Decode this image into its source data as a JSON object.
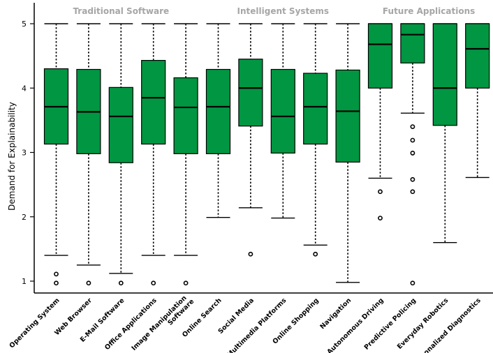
{
  "chart_data": {
    "type": "box",
    "ylabel": "Demand for Explainability",
    "ylim": [
      0.83,
      5.3
    ],
    "yticks": [
      1,
      2,
      3,
      4,
      5
    ],
    "box_color": "#009642",
    "groups": [
      {
        "label": "Traditional Software",
        "span": [
          0,
          4
        ]
      },
      {
        "label": "Intelligent Systems",
        "span": [
          5,
          9
        ]
      },
      {
        "label": "Future Applications",
        "span": [
          10,
          13
        ]
      }
    ],
    "categories": [
      {
        "label": "Operating System",
        "min": 1.4,
        "q1": 3.13,
        "median": 3.71,
        "q3": 4.3,
        "max": 5.0,
        "outliers": [
          1.11,
          0.97
        ]
      },
      {
        "label": "Web Browser",
        "min": 1.25,
        "q1": 2.98,
        "median": 3.63,
        "q3": 4.29,
        "max": 5.0,
        "outliers": [
          0.97
        ]
      },
      {
        "label": "E-Mail Software",
        "min": 1.12,
        "q1": 2.84,
        "median": 3.56,
        "q3": 4.01,
        "max": 5.0,
        "outliers": [
          0.97
        ]
      },
      {
        "label": "Office Applications",
        "min": 1.4,
        "q1": 3.13,
        "median": 3.85,
        "q3": 4.43,
        "max": 5.0,
        "outliers": [
          0.97
        ]
      },
      {
        "label": "Image Manipulation Software",
        "min": 1.4,
        "q1": 2.98,
        "median": 3.7,
        "q3": 4.16,
        "max": 5.0,
        "outliers": [
          0.97
        ]
      },
      {
        "label": "Online Search",
        "min": 1.99,
        "q1": 2.98,
        "median": 3.71,
        "q3": 4.29,
        "max": 5.0,
        "outliers": []
      },
      {
        "label": "Social  Media",
        "min": 2.14,
        "q1": 3.41,
        "median": 4.0,
        "q3": 4.45,
        "max": 5.0,
        "outliers": [
          1.42
        ]
      },
      {
        "label": "Multimedia Platforms",
        "min": 1.98,
        "q1": 2.99,
        "median": 3.56,
        "q3": 4.29,
        "max": 5.0,
        "outliers": []
      },
      {
        "label": "Online Shopping",
        "min": 1.56,
        "q1": 3.13,
        "median": 3.71,
        "q3": 4.23,
        "max": 5.0,
        "outliers": [
          1.42
        ]
      },
      {
        "label": "Navigation",
        "min": 0.98,
        "q1": 2.85,
        "median": 3.64,
        "q3": 4.28,
        "max": 5.0,
        "outliers": []
      },
      {
        "label": "Autonomous Driving",
        "min": 2.6,
        "q1": 4.0,
        "median": 4.68,
        "q3": 5.0,
        "max": 5.0,
        "outliers": [
          2.39,
          1.98
        ]
      },
      {
        "label": "Predictive Policing",
        "min": 3.61,
        "q1": 4.39,
        "median": 4.83,
        "q3": 5.0,
        "max": 5.0,
        "outliers": [
          3.4,
          3.19,
          2.99,
          2.58,
          2.39,
          0.97
        ]
      },
      {
        "label": "Everyday Robotics",
        "min": 1.6,
        "q1": 3.42,
        "median": 4.0,
        "q3": 5.0,
        "max": 5.0,
        "outliers": []
      },
      {
        "label": "Personalized Diagnostics",
        "min": 2.61,
        "q1": 4.0,
        "median": 4.61,
        "q3": 5.0,
        "max": 5.0,
        "outliers": []
      }
    ]
  }
}
